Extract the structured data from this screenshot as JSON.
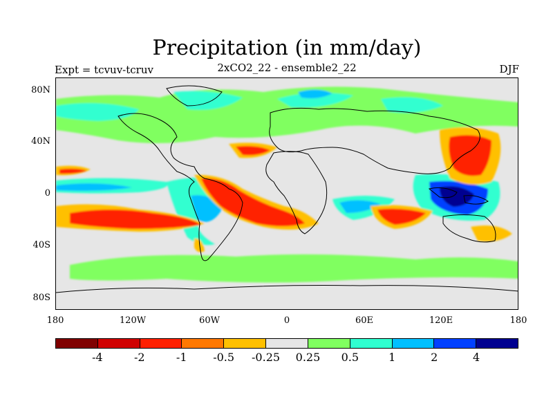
{
  "title": "Precipitation (in mm/day)",
  "subtitle": "2xCO2_22 - ensemble2_22",
  "left_label": "Expt = tcvuv-tcruv",
  "season": "DJF",
  "lat_ticks": [
    "80N",
    "40N",
    "0",
    "40S",
    "80S"
  ],
  "lon_ticks": [
    "180",
    "120W",
    "60W",
    "0",
    "60E",
    "120E",
    "180"
  ],
  "colorbar": {
    "colors": [
      "#800000",
      "#d00000",
      "#ff2000",
      "#ff7800",
      "#ffc000",
      "#e6e6e6",
      "#80ff60",
      "#30ffd0",
      "#00c0ff",
      "#0040ff",
      "#000090"
    ],
    "labels": [
      "-4",
      "-2",
      "-1",
      "-0.5",
      "-0.25",
      "0.25",
      "0.5",
      "1",
      "2",
      "4"
    ]
  }
}
